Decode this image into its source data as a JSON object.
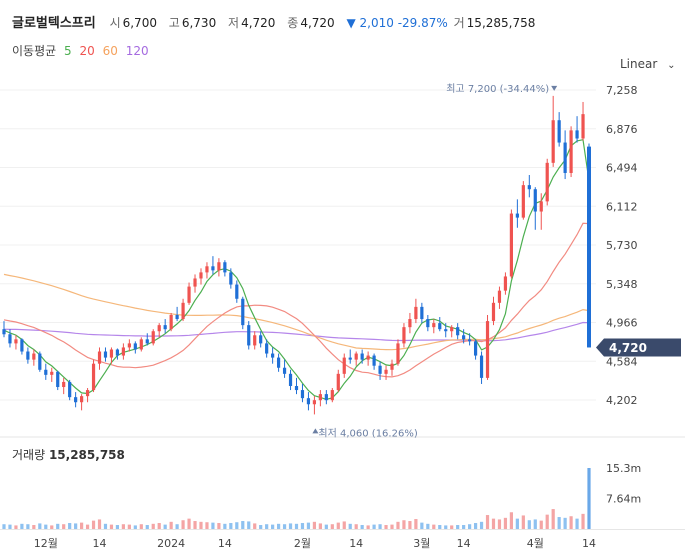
{
  "header": {
    "name": "글로벌텍스프리",
    "open_label": "시",
    "open": "6,700",
    "high_label": "고",
    "high": "6,730",
    "low_label": "저",
    "low": "4,720",
    "close_label": "종",
    "close": "4,720",
    "change": "▼ 2,010 -29.87%",
    "volume_label": "거",
    "volume": "15,285,758"
  },
  "ma_legend": {
    "label": "이동평균",
    "items": [
      {
        "period": "5",
        "color": "#4caf50"
      },
      {
        "period": "20",
        "color": "#ef5350"
      },
      {
        "period": "60",
        "color": "#f5a25d"
      },
      {
        "period": "120",
        "color": "#a56be0"
      }
    ]
  },
  "scale": {
    "label": "Linear",
    "icon": "chevron-down-icon"
  },
  "annotations": {
    "high": "최고 7,200 (-34.44%)",
    "low": "최저 4,060 (16.26%)"
  },
  "current_price": "4,720",
  "volume_panel": {
    "label": "거래량",
    "value": "15,285,758"
  },
  "chart_data": {
    "type": "candlestick",
    "price_axis": {
      "ticks": [
        7258,
        6876,
        6494,
        6112,
        5730,
        5348,
        4966,
        4584,
        4202
      ],
      "tick_labels": [
        "7,258",
        "6,876",
        "6,494",
        "6,112",
        "5,730",
        "5,348",
        "4,966",
        "4,584",
        "4,202"
      ]
    },
    "volume_axis": {
      "ticks": [
        15.3,
        7.64
      ],
      "tick_labels": [
        "15.3m",
        "7.64m"
      ]
    },
    "x_axis": {
      "labels": [
        "12월",
        "14",
        "2024",
        "14",
        "2월",
        "14",
        "3월",
        "14",
        "4월",
        "14"
      ]
    },
    "colors": {
      "up": "#ef5350",
      "down": "#1f6fd6",
      "volume_up": "#f4a5a5",
      "volume_down": "#8ec1f0",
      "last_volume": "#6aa8e8"
    },
    "candles": [
      [
        4900,
        4980,
        4820,
        4850,
        1.2
      ],
      [
        4850,
        4900,
        4720,
        4760,
        1.1
      ],
      [
        4760,
        4840,
        4700,
        4800,
        0.9
      ],
      [
        4800,
        4810,
        4650,
        4680,
        1.3
      ],
      [
        4680,
        4720,
        4560,
        4600,
        1.2
      ],
      [
        4600,
        4700,
        4540,
        4660,
        1.0
      ],
      [
        4660,
        4680,
        4480,
        4500,
        1.4
      ],
      [
        4500,
        4560,
        4400,
        4450,
        1.1
      ],
      [
        4450,
        4520,
        4380,
        4480,
        0.9
      ],
      [
        4480,
        4490,
        4300,
        4330,
        1.3
      ],
      [
        4330,
        4420,
        4260,
        4380,
        1.2
      ],
      [
        4380,
        4400,
        4200,
        4230,
        1.5
      ],
      [
        4230,
        4280,
        4130,
        4180,
        1.4
      ],
      [
        4180,
        4260,
        4100,
        4240,
        1.6
      ],
      [
        4240,
        4320,
        4180,
        4300,
        1.1
      ],
      [
        4300,
        4600,
        4280,
        4560,
        2.1
      ],
      [
        4560,
        4720,
        4500,
        4680,
        2.4
      ],
      [
        4680,
        4720,
        4580,
        4620,
        1.3
      ],
      [
        4620,
        4720,
        4560,
        4700,
        1.1
      ],
      [
        4700,
        4710,
        4600,
        4640,
        1.0
      ],
      [
        4640,
        4760,
        4600,
        4720,
        1.2
      ],
      [
        4720,
        4800,
        4680,
        4760,
        1.1
      ],
      [
        4760,
        4780,
        4660,
        4700,
        0.9
      ],
      [
        4700,
        4820,
        4680,
        4800,
        1.2
      ],
      [
        4800,
        4860,
        4740,
        4760,
        1.0
      ],
      [
        4760,
        4900,
        4740,
        4880,
        1.3
      ],
      [
        4880,
        4960,
        4820,
        4940,
        1.5
      ],
      [
        4940,
        5000,
        4860,
        4900,
        1.1
      ],
      [
        4900,
        5060,
        4880,
        5040,
        1.8
      ],
      [
        5040,
        5120,
        4980,
        5000,
        1.2
      ],
      [
        5000,
        5200,
        4980,
        5160,
        2.2
      ],
      [
        5160,
        5360,
        5140,
        5320,
        2.6
      ],
      [
        5320,
        5440,
        5260,
        5400,
        2.0
      ],
      [
        5400,
        5500,
        5340,
        5460,
        1.8
      ],
      [
        5460,
        5560,
        5400,
        5520,
        1.7
      ],
      [
        5520,
        5620,
        5440,
        5480,
        1.6
      ],
      [
        5480,
        5600,
        5420,
        5560,
        1.5
      ],
      [
        5560,
        5580,
        5420,
        5460,
        1.3
      ],
      [
        5460,
        5500,
        5300,
        5340,
        1.5
      ],
      [
        5340,
        5380,
        5160,
        5200,
        1.7
      ],
      [
        5200,
        5220,
        4900,
        4940,
        2.0
      ],
      [
        4940,
        4980,
        4700,
        4740,
        1.9
      ],
      [
        4740,
        4880,
        4700,
        4840,
        1.4
      ],
      [
        4840,
        4880,
        4720,
        4760,
        1.0
      ],
      [
        4760,
        4800,
        4620,
        4660,
        1.2
      ],
      [
        4660,
        4720,
        4560,
        4620,
        1.1
      ],
      [
        4620,
        4660,
        4480,
        4520,
        1.3
      ],
      [
        4520,
        4600,
        4420,
        4460,
        1.2
      ],
      [
        4460,
        4500,
        4300,
        4340,
        1.4
      ],
      [
        4340,
        4420,
        4260,
        4300,
        1.3
      ],
      [
        4300,
        4360,
        4180,
        4220,
        1.5
      ],
      [
        4220,
        4280,
        4100,
        4160,
        1.6
      ],
      [
        4160,
        4240,
        4060,
        4200,
        1.8
      ],
      [
        4200,
        4300,
        4140,
        4260,
        1.4
      ],
      [
        4260,
        4300,
        4160,
        4200,
        1.1
      ],
      [
        4200,
        4320,
        4180,
        4300,
        1.2
      ],
      [
        4300,
        4500,
        4280,
        4460,
        1.6
      ],
      [
        4460,
        4660,
        4420,
        4620,
        1.9
      ],
      [
        4620,
        4700,
        4560,
        4600,
        1.3
      ],
      [
        4600,
        4680,
        4540,
        4660,
        1.2
      ],
      [
        4660,
        4700,
        4560,
        4600,
        1.0
      ],
      [
        4600,
        4680,
        4540,
        4640,
        0.9
      ],
      [
        4640,
        4660,
        4500,
        4540,
        1.1
      ],
      [
        4540,
        4580,
        4400,
        4460,
        1.2
      ],
      [
        4460,
        4540,
        4400,
        4500,
        1.0
      ],
      [
        4500,
        4600,
        4440,
        4560,
        1.1
      ],
      [
        4560,
        4800,
        4540,
        4760,
        1.8
      ],
      [
        4760,
        4960,
        4720,
        4920,
        2.2
      ],
      [
        4920,
        5060,
        4860,
        5000,
        2.0
      ],
      [
        5000,
        5200,
        4960,
        5120,
        2.5
      ],
      [
        5120,
        5160,
        4960,
        5000,
        1.6
      ],
      [
        5000,
        5040,
        4880,
        4920,
        1.3
      ],
      [
        4920,
        5000,
        4860,
        4960,
        1.1
      ],
      [
        4960,
        5020,
        4880,
        4900,
        1.0
      ],
      [
        4900,
        4960,
        4820,
        4880,
        0.9
      ],
      [
        4880,
        4940,
        4820,
        4920,
        0.9
      ],
      [
        4920,
        4960,
        4800,
        4840,
        1.0
      ],
      [
        4840,
        4900,
        4760,
        4800,
        1.0
      ],
      [
        4800,
        4860,
        4740,
        4780,
        1.2
      ],
      [
        4780,
        4800,
        4600,
        4640,
        1.5
      ],
      [
        4640,
        4680,
        4360,
        4420,
        1.8
      ],
      [
        4420,
        5040,
        4400,
        4980,
        3.5
      ],
      [
        4980,
        5220,
        4940,
        5160,
        2.6
      ],
      [
        5160,
        5320,
        5100,
        5280,
        2.4
      ],
      [
        5280,
        5460,
        5240,
        5420,
        2.8
      ],
      [
        5420,
        6080,
        5400,
        6040,
        4.2
      ],
      [
        6040,
        6180,
        5900,
        6000,
        2.6
      ],
      [
        6000,
        6360,
        5980,
        6320,
        3.4
      ],
      [
        6320,
        6420,
        6200,
        6280,
        2.2
      ],
      [
        6280,
        6300,
        5880,
        6060,
        2.4
      ],
      [
        6060,
        6240,
        5880,
        6160,
        2.1
      ],
      [
        6160,
        6580,
        6120,
        6540,
        3.6
      ],
      [
        6540,
        7200,
        6500,
        6960,
        5.0
      ],
      [
        6960,
        7040,
        6700,
        6740,
        3.0
      ],
      [
        6740,
        6860,
        6380,
        6440,
        2.8
      ],
      [
        6440,
        6900,
        6400,
        6860,
        3.2
      ],
      [
        6860,
        7000,
        6740,
        6780,
        2.6
      ],
      [
        6780,
        7140,
        6760,
        7020,
        3.8
      ],
      [
        6700,
        6730,
        4720,
        4720,
        15.3
      ]
    ]
  }
}
